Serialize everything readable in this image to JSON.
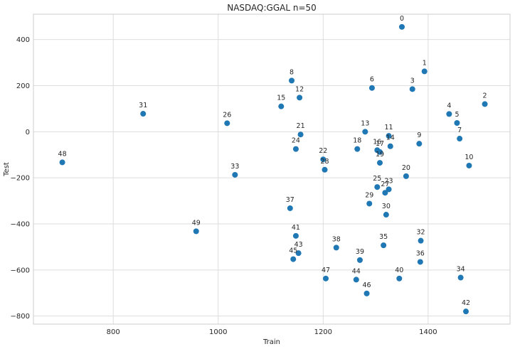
{
  "chart_data": {
    "type": "scatter",
    "title": "NASDAQ:GGAL n=50",
    "xlabel": "Train",
    "ylabel": "Test",
    "xlim": [
      648,
      1556
    ],
    "ylim": [
      -835,
      510
    ],
    "xticks": [
      800,
      1000,
      1200,
      1400
    ],
    "yticks": [
      -800,
      -600,
      -400,
      -200,
      0,
      200,
      400
    ],
    "grid": true,
    "marker_color": "#1f77b4",
    "points": [
      {
        "label": "0",
        "x": 1350,
        "y": 455
      },
      {
        "label": "1",
        "x": 1393,
        "y": 262
      },
      {
        "label": "2",
        "x": 1508,
        "y": 120
      },
      {
        "label": "3",
        "x": 1370,
        "y": 185
      },
      {
        "label": "4",
        "x": 1440,
        "y": 77
      },
      {
        "label": "5",
        "x": 1455,
        "y": 38
      },
      {
        "label": "6",
        "x": 1293,
        "y": 190
      },
      {
        "label": "7",
        "x": 1460,
        "y": -30
      },
      {
        "label": "8",
        "x": 1140,
        "y": 222
      },
      {
        "label": "9",
        "x": 1383,
        "y": -52
      },
      {
        "label": "10",
        "x": 1478,
        "y": -147
      },
      {
        "label": "11",
        "x": 1325,
        "y": -18
      },
      {
        "label": "12",
        "x": 1155,
        "y": 148
      },
      {
        "label": "13",
        "x": 1280,
        "y": 0
      },
      {
        "label": "14",
        "x": 1328,
        "y": -63
      },
      {
        "label": "15",
        "x": 1120,
        "y": 110
      },
      {
        "label": "16",
        "x": 1303,
        "y": -80
      },
      {
        "label": "17",
        "x": 1308,
        "y": -88
      },
      {
        "label": "18",
        "x": 1265,
        "y": -75
      },
      {
        "label": "19",
        "x": 1308,
        "y": -135
      },
      {
        "label": "20",
        "x": 1358,
        "y": -193
      },
      {
        "label": "21",
        "x": 1157,
        "y": -12
      },
      {
        "label": "22",
        "x": 1200,
        "y": -120
      },
      {
        "label": "23",
        "x": 1325,
        "y": -250
      },
      {
        "label": "24",
        "x": 1148,
        "y": -75
      },
      {
        "label": "25",
        "x": 1303,
        "y": -240
      },
      {
        "label": "26",
        "x": 1017,
        "y": 37
      },
      {
        "label": "27",
        "x": 1318,
        "y": -265
      },
      {
        "label": "28",
        "x": 1203,
        "y": -165
      },
      {
        "label": "29",
        "x": 1288,
        "y": -312
      },
      {
        "label": "30",
        "x": 1320,
        "y": -360
      },
      {
        "label": "31",
        "x": 857,
        "y": 78
      },
      {
        "label": "32",
        "x": 1386,
        "y": -473
      },
      {
        "label": "33",
        "x": 1032,
        "y": -187
      },
      {
        "label": "34",
        "x": 1462,
        "y": -633
      },
      {
        "label": "35",
        "x": 1315,
        "y": -493
      },
      {
        "label": "36",
        "x": 1385,
        "y": -565
      },
      {
        "label": "37",
        "x": 1137,
        "y": -332
      },
      {
        "label": "38",
        "x": 1225,
        "y": -503
      },
      {
        "label": "39",
        "x": 1270,
        "y": -557
      },
      {
        "label": "40",
        "x": 1345,
        "y": -637
      },
      {
        "label": "41",
        "x": 1148,
        "y": -452
      },
      {
        "label": "42",
        "x": 1472,
        "y": -780
      },
      {
        "label": "43",
        "x": 1153,
        "y": -527
      },
      {
        "label": "44",
        "x": 1263,
        "y": -642
      },
      {
        "label": "45",
        "x": 1143,
        "y": -553
      },
      {
        "label": "46",
        "x": 1283,
        "y": -702
      },
      {
        "label": "47",
        "x": 1205,
        "y": -637
      },
      {
        "label": "48",
        "x": 703,
        "y": -133
      },
      {
        "label": "49",
        "x": 958,
        "y": -432
      }
    ]
  }
}
